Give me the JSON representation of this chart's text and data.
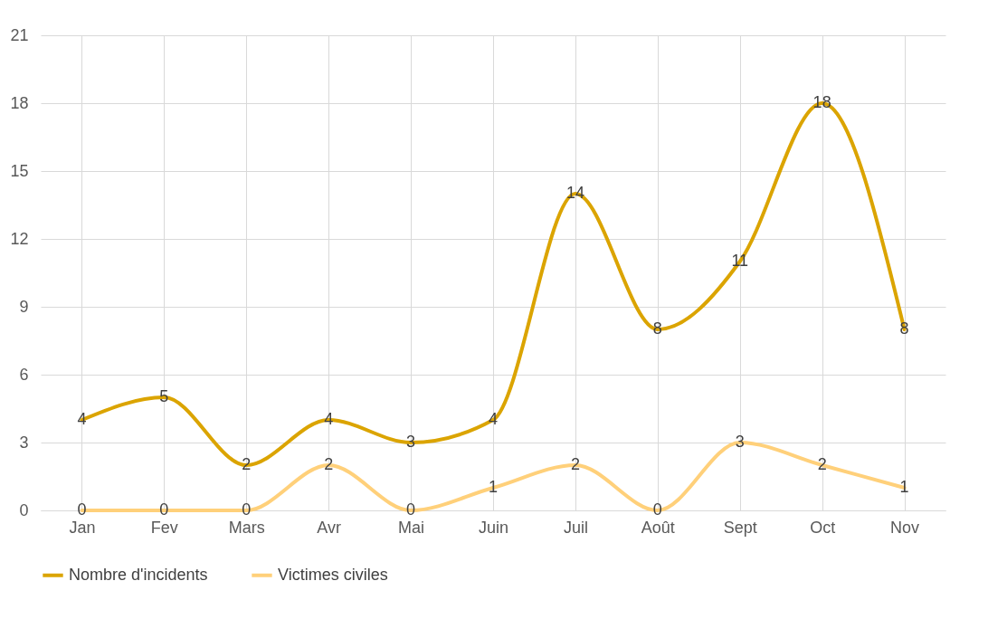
{
  "chart_data": {
    "type": "line",
    "categories": [
      "Jan",
      "Fev",
      "Mars",
      "Avr",
      "Mai",
      "Juin",
      "Juil",
      "Août",
      "Sept",
      "Oct",
      "Nov"
    ],
    "series": [
      {
        "name": "Nombre d'incidents",
        "color": "#dba400",
        "values": [
          4,
          5,
          2,
          4,
          3,
          4,
          14,
          8,
          11,
          18,
          8
        ]
      },
      {
        "name": "Victimes civiles",
        "color": "#ffd07a",
        "values": [
          0,
          0,
          0,
          2,
          0,
          1,
          2,
          0,
          3,
          2,
          1
        ]
      }
    ],
    "ylim": [
      0,
      21
    ],
    "yticks": [
      0,
      3,
      6,
      9,
      12,
      15,
      18,
      21
    ],
    "grid": true,
    "legend": "bottom",
    "data_labels": true,
    "marker": "none",
    "line_style": "solid"
  }
}
